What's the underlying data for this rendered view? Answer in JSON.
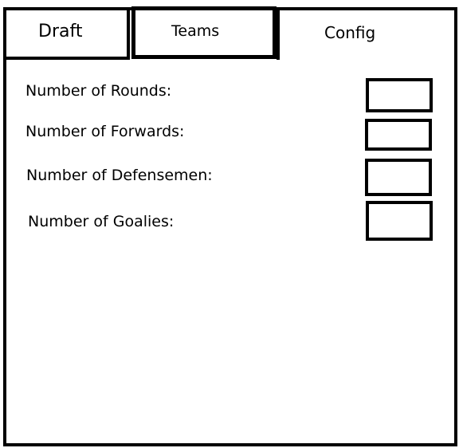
{
  "tabs": [
    {
      "label": "Draft"
    },
    {
      "label": "Teams"
    },
    {
      "label": "Config"
    }
  ],
  "config": {
    "fields": [
      {
        "label": "Number of Rounds:",
        "value": ""
      },
      {
        "label": "Number of Forwards:",
        "value": ""
      },
      {
        "label": "Number of Defensemen:",
        "value": ""
      },
      {
        "label": "Number of Goalies:",
        "value": ""
      }
    ]
  }
}
